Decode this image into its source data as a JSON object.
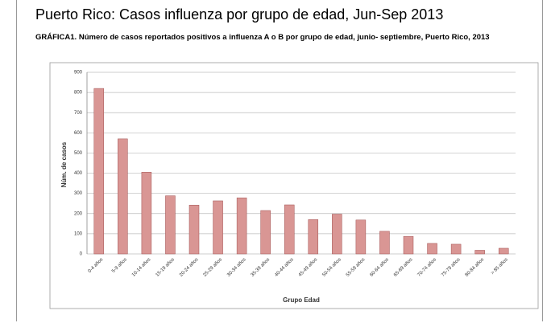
{
  "chart_data": {
    "type": "bar",
    "title": "Puerto Rico: Casos influenza por grupo de edad, Jun-Sep 2013",
    "subtitle": "GRÁFICA1. Número de casos reportados positivos a influenza A o B por grupo de edad, junio- septiembre, Puerto Rico, 2013",
    "x_label": "Grupo Edad",
    "y_label": "Núm. de casos",
    "categories": [
      "0-4 años",
      "5-9 años",
      "10-14 años",
      "15-19 años",
      "20-24 años",
      "25-29 años",
      "30-34 años",
      "35-39 años",
      "40-44 años",
      "45-49 años",
      "50-54 años",
      "55-59 años",
      "60-64 años",
      "65-69 años",
      "70-74 años",
      "75-79 años",
      "80-84 años",
      "> 85 años"
    ],
    "values": [
      820,
      570,
      405,
      288,
      242,
      263,
      278,
      215,
      243,
      170,
      197,
      168,
      112,
      87,
      52,
      48,
      18,
      28
    ],
    "color": "#d99694",
    "ylim": [
      0,
      900
    ],
    "yticks": [
      0,
      100,
      200,
      300,
      400,
      500,
      600,
      700,
      800,
      900
    ],
    "grid": true
  }
}
